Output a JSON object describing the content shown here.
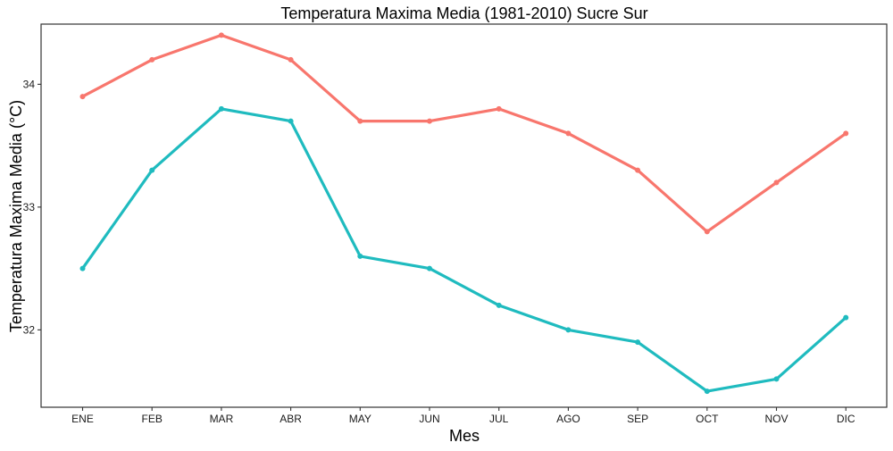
{
  "chart_data": {
    "type": "line",
    "title": "Temperatura Maxima Media (1981-2010)  Sucre Sur",
    "xlabel": "Mes",
    "ylabel": "Temperatura Maxima Media  (°C)",
    "categories": [
      "ENE",
      "FEB",
      "MAR",
      "ABR",
      "MAY",
      "JUN",
      "JUL",
      "AGO",
      "SEP",
      "OCT",
      "NOV",
      "DIC"
    ],
    "yticks": [
      32,
      33,
      34
    ],
    "ylim": [
      31.37,
      34.49
    ],
    "grid": false,
    "legend": "none",
    "series": [
      {
        "color": "#F8766D",
        "values": [
          33.9,
          34.2,
          34.4,
          34.2,
          33.7,
          33.7,
          33.8,
          33.6,
          33.3,
          32.8,
          33.2,
          33.6
        ]
      },
      {
        "color": "#1FBBBF",
        "values": [
          32.5,
          33.3,
          33.8,
          33.7,
          32.6,
          32.5,
          32.2,
          32.0,
          31.9,
          31.5,
          31.6,
          32.1
        ]
      }
    ]
  }
}
